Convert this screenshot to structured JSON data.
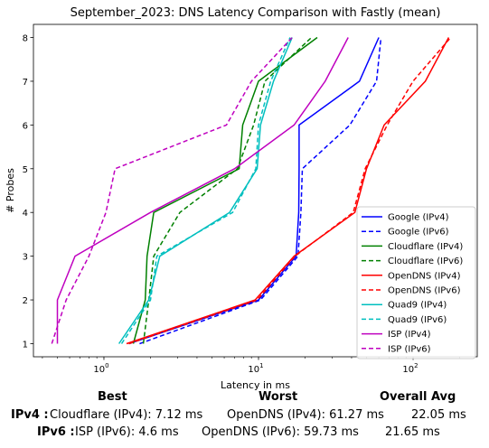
{
  "chart_data": {
    "type": "line",
    "title": "September_2023: DNS Latency Comparison with Fastly (mean)",
    "xlabel": "Latency in ms",
    "ylabel": "# Probes",
    "xscale": "log",
    "xlim": [
      0.35,
      260
    ],
    "ylim": [
      0.7,
      8.3
    ],
    "xticks": [
      {
        "value": 1,
        "label": "10^0"
      },
      {
        "value": 10,
        "label": "10^1"
      },
      {
        "value": 100,
        "label": "10^2"
      }
    ],
    "yticks": [
      1,
      2,
      3,
      4,
      5,
      6,
      7,
      8
    ],
    "legend_position": "lower-right",
    "series": [
      {
        "name": "Google (IPv4)",
        "color": "#0000ff",
        "dash": "solid",
        "x": [
          1.45,
          10.0,
          17.5,
          18.2,
          18.3,
          18.3,
          45.0,
          60.0
        ],
        "y": [
          1,
          2,
          3,
          4,
          5,
          6,
          7,
          8
        ]
      },
      {
        "name": "Google (IPv6)",
        "color": "#0000ff",
        "dash": "dashed",
        "x": [
          1.7,
          10.3,
          18.0,
          18.8,
          19.2,
          39.0,
          58.0,
          62.0
        ],
        "y": [
          1,
          2,
          3,
          4,
          5,
          6,
          7,
          8
        ]
      },
      {
        "name": "Cloudflare (IPv4)",
        "color": "#008000",
        "dash": "solid",
        "x": [
          1.55,
          1.85,
          1.9,
          2.1,
          7.5,
          7.9,
          10.0,
          24.0
        ],
        "y": [
          1,
          2,
          3,
          4,
          5,
          6,
          7,
          8
        ]
      },
      {
        "name": "Cloudflare (IPv6)",
        "color": "#008000",
        "dash": "dashed",
        "x": [
          1.8,
          1.95,
          2.1,
          3.1,
          7.3,
          9.3,
          11.0,
          22.0
        ],
        "y": [
          1,
          2,
          3,
          4,
          5,
          6,
          7,
          8
        ]
      },
      {
        "name": "OpenDNS (IPv4)",
        "color": "#ff0000",
        "dash": "solid",
        "x": [
          1.4,
          9.5,
          17.0,
          42.0,
          50.0,
          65.0,
          120.0,
          170.0
        ],
        "y": [
          1,
          2,
          3,
          4,
          5,
          6,
          7,
          8
        ]
      },
      {
        "name": "OpenDNS (IPv6)",
        "color": "#ff0000",
        "dash": "dashed",
        "x": [
          1.45,
          9.8,
          17.2,
          41.0,
          49.0,
          68.0,
          100.0,
          175.0
        ],
        "y": [
          1,
          2,
          3,
          4,
          5,
          6,
          7,
          8
        ]
      },
      {
        "name": "Quad9 (IPv4)",
        "color": "#00bfbf",
        "dash": "solid",
        "x": [
          1.25,
          1.95,
          2.3,
          6.5,
          9.8,
          10.3,
          12.5,
          16.5
        ],
        "y": [
          1,
          2,
          3,
          4,
          5,
          6,
          7,
          8
        ]
      },
      {
        "name": "Quad9 (IPv6)",
        "color": "#00bfbf",
        "dash": "dashed",
        "x": [
          1.3,
          2.0,
          2.2,
          6.8,
          9.6,
          10.0,
          12.0,
          16.0
        ],
        "y": [
          1,
          2,
          3,
          4,
          5,
          6,
          7,
          8
        ]
      },
      {
        "name": "ISP (IPv4)",
        "color": "#bf00bf",
        "dash": "solid",
        "x": [
          0.5,
          0.5,
          0.65,
          2.0,
          7.0,
          17.0,
          27.0,
          38.0
        ],
        "y": [
          1,
          2,
          3,
          4,
          5,
          6,
          7,
          8
        ]
      },
      {
        "name": "ISP (IPv6)",
        "color": "#bf00bf",
        "dash": "dashed",
        "x": [
          0.46,
          0.57,
          0.8,
          1.03,
          1.18,
          6.2,
          9.0,
          16.5
        ],
        "y": [
          1,
          2,
          3,
          4,
          5,
          6,
          7,
          8
        ]
      }
    ]
  },
  "stats": {
    "best_header": "Best",
    "worst_header": "Worst",
    "avg_header": "Overall Avg",
    "rows": [
      {
        "label": "IPv4 :",
        "best": "Cloudflare (IPv4): 7.12 ms",
        "worst": "OpenDNS (IPv4): 61.27 ms",
        "avg": "22.05 ms"
      },
      {
        "label": "IPv6 :",
        "best": "ISP (IPv6): 4.6 ms",
        "worst": "OpenDNS (IPv6): 59.73 ms",
        "avg": "21.65 ms"
      }
    ]
  }
}
